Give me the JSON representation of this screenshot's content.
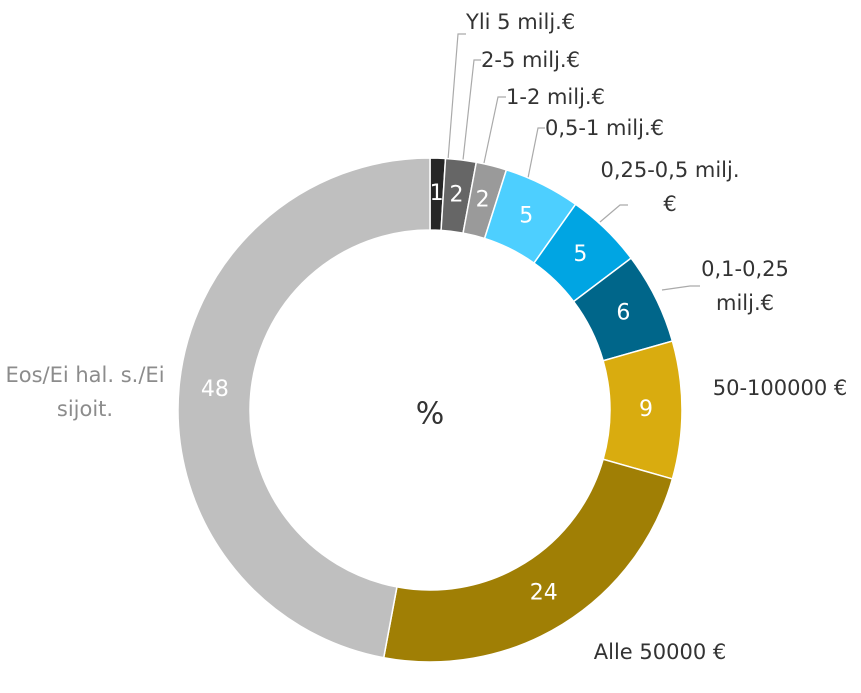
{
  "chart_data": {
    "type": "donut",
    "center_label": "%",
    "categories": [
      "Yli 5 milj.€",
      "2-5 milj.€",
      "1-2 milj.€",
      "0,5-1 milj.€",
      "0,25-0,5 milj.€",
      "0,1-0,25 milj.€",
      "50-100000 €",
      "Alle 50000 €",
      "Eos/Ei hal. s./Ei sijoit."
    ],
    "values": [
      1,
      2,
      2,
      5,
      5,
      6,
      9,
      24,
      48
    ],
    "colors": [
      "#262626",
      "#666666",
      "#9a9a9a",
      "#4dcfff",
      "#00a5e3",
      "#00668a",
      "#d9ac0f",
      "#a07f05",
      "#bfbfbf"
    ]
  }
}
